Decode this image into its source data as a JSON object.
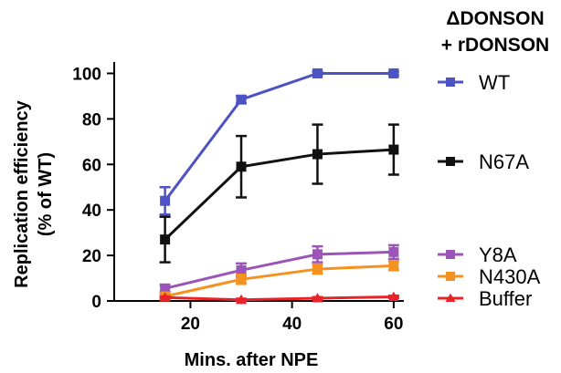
{
  "chart_data": {
    "type": "line",
    "xlabel": "Mins. after NPE",
    "ylabel": [
      "Replication efficiency",
      "(% of WT)"
    ],
    "xlim": [
      5,
      62
    ],
    "ylim": [
      0,
      105
    ],
    "xticks": [
      20,
      40,
      60
    ],
    "yticks": [
      0,
      20,
      40,
      60,
      80,
      100
    ],
    "x": [
      15,
      30,
      45,
      60
    ],
    "legend": {
      "title": [
        "ΔDONSON",
        "+ rDONSON"
      ],
      "placement": "right"
    },
    "series": [
      {
        "name": "WT",
        "color": "#4d52c4",
        "marker": "square",
        "values": [
          44,
          88.5,
          100,
          100
        ],
        "errors": [
          6,
          1.5,
          0.8,
          0.8
        ]
      },
      {
        "name": "N67A",
        "color": "#111111",
        "marker": "square",
        "values": [
          27,
          59,
          64.5,
          66.5
        ],
        "errors": [
          10,
          13.5,
          13,
          11
        ]
      },
      {
        "name": "Y8A",
        "color": "#9b55b8",
        "marker": "square",
        "values": [
          5.5,
          13.5,
          20.5,
          21.5
        ],
        "errors": [
          1.5,
          3,
          3.5,
          3
        ]
      },
      {
        "name": "N430A",
        "color": "#f3921f",
        "marker": "square",
        "values": [
          2,
          9.5,
          14,
          15.5
        ],
        "errors": [
          1,
          2,
          2,
          2
        ]
      },
      {
        "name": "Buffer",
        "color": "#e8242a",
        "marker": "triangle",
        "values": [
          1.5,
          0.5,
          1.2,
          1.8
        ],
        "errors": [
          0.5,
          0.5,
          0.5,
          0.5
        ]
      }
    ]
  }
}
